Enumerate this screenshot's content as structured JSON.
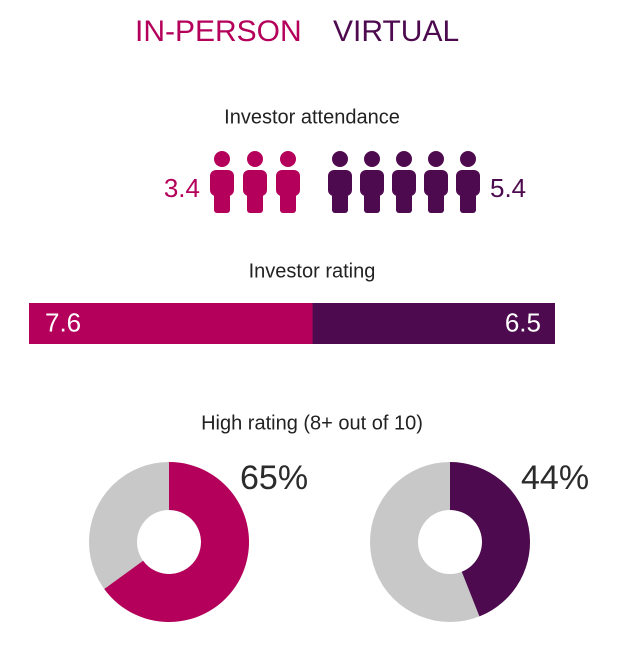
{
  "legend": [
    {
      "name": "IN-PERSON",
      "color": "#b5005b"
    },
    {
      "name": "VIRTUAL",
      "color": "#4e0a4e"
    }
  ],
  "chart_data": [
    {
      "type": "pictogram",
      "title": "Investor attendance",
      "values": [
        3.4,
        5.4
      ]
    },
    {
      "type": "stacked-bar",
      "title": "Investor rating",
      "values": [
        7.6,
        6.5
      ]
    },
    {
      "type": "donut",
      "title": "High rating (8+ out of 10)",
      "values": [
        65,
        44
      ],
      "value_labels": [
        "65%",
        "44%"
      ],
      "total": 100,
      "remainder_color": "#c8c8c8"
    }
  ]
}
